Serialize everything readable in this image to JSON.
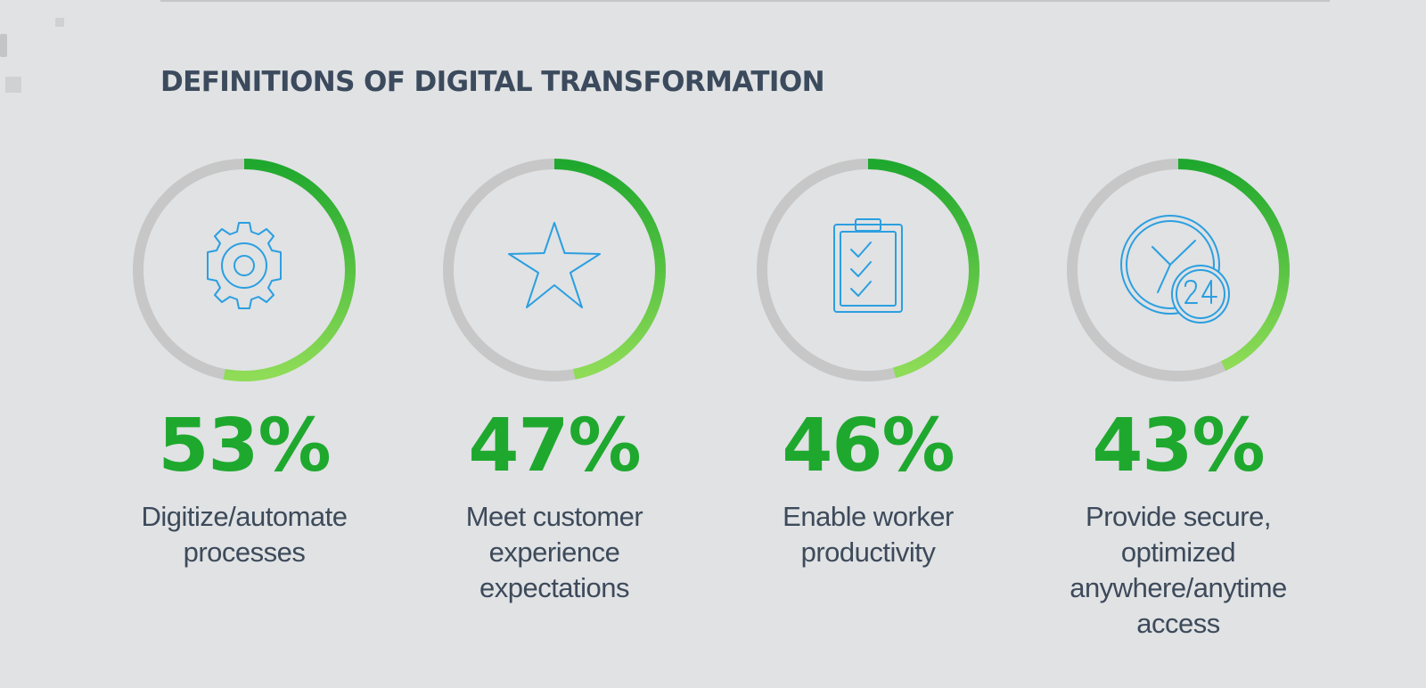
{
  "title": "DEFINITIONS OF DIGITAL TRANSFORMATION",
  "colors": {
    "track": "#c7c7c7",
    "arc_start": "#1fa82e",
    "arc_end": "#8fdc57",
    "icon": "#2b9fe0",
    "value_text": "#1fa82e",
    "label_text": "#3d4a5a"
  },
  "chart_data": {
    "type": "donut-stat",
    "title": "DEFINITIONS OF DIGITAL TRANSFORMATION",
    "unit": "%",
    "categories": [
      "Digitize/automate processes",
      "Meet customer experience expectations",
      "Enable worker productivity",
      "Provide secure, optimized anywhere/anytime access"
    ],
    "values": [
      53,
      47,
      46,
      43
    ],
    "items": [
      {
        "value": 53,
        "value_text": "53%",
        "label": "Digitize/automate\nprocesses",
        "icon": "gear-icon"
      },
      {
        "value": 47,
        "value_text": "47%",
        "label": "Meet customer\nexperience\nexpectations",
        "icon": "star-icon"
      },
      {
        "value": 46,
        "value_text": "46%",
        "label": "Enable worker\nproductivity",
        "icon": "clipboard-checklist-icon"
      },
      {
        "value": 43,
        "value_text": "43%",
        "label": "Provide secure,\noptimized\nanywhere/anytime\naccess",
        "icon": "clock-24-icon"
      }
    ]
  }
}
